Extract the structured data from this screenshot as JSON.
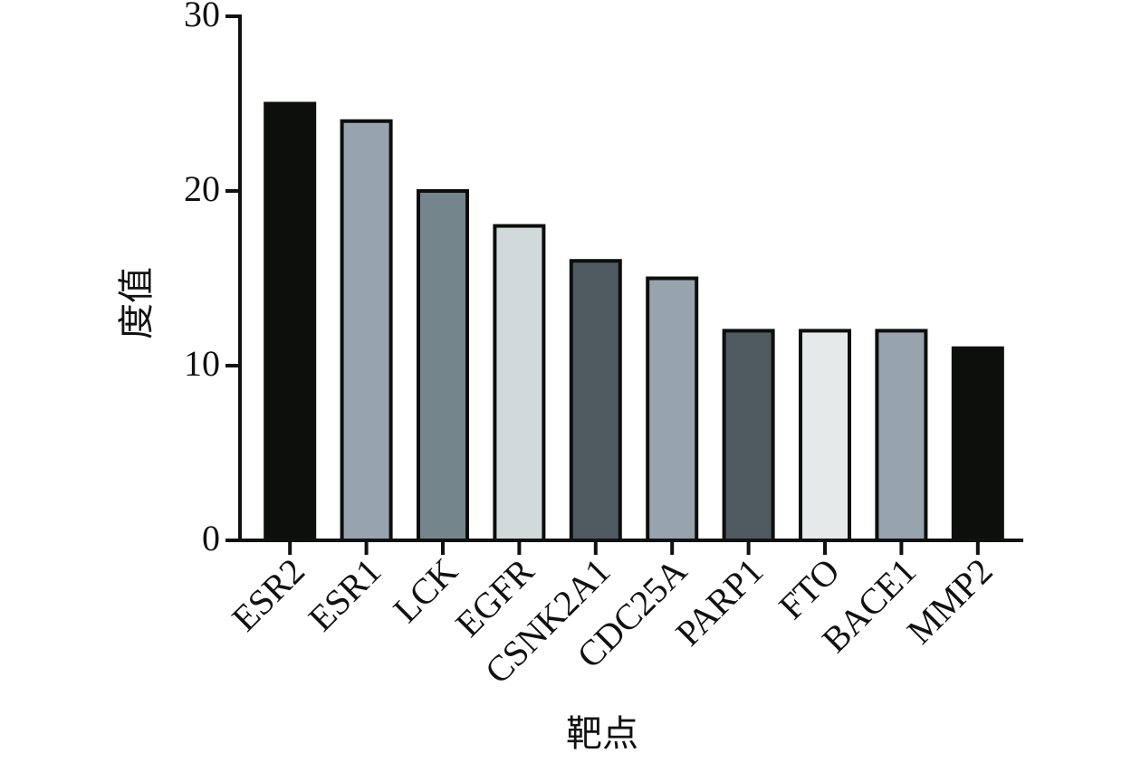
{
  "chart_data": {
    "type": "bar",
    "categories": [
      "ESR2",
      "ESR1",
      "LCK",
      "EGFR",
      "CSNK2A1",
      "CDC25A",
      "PARP1",
      "FTO",
      "BACE1",
      "MMP2"
    ],
    "values": [
      25,
      24,
      20,
      18,
      16,
      15,
      12,
      12,
      12,
      11
    ],
    "colors": [
      "#0d0f0d",
      "#97a4ae",
      "#75858c",
      "#d2d9db",
      "#4f5a60",
      "#97a4ae",
      "#4f5a60",
      "#e6e9e9",
      "#97a4ae",
      "#0d0f0d"
    ],
    "xlabel": "靶点",
    "ylabel": "度值",
    "ylim": [
      0,
      30
    ],
    "yticks": [
      0,
      10,
      20,
      30
    ],
    "grid": false
  }
}
